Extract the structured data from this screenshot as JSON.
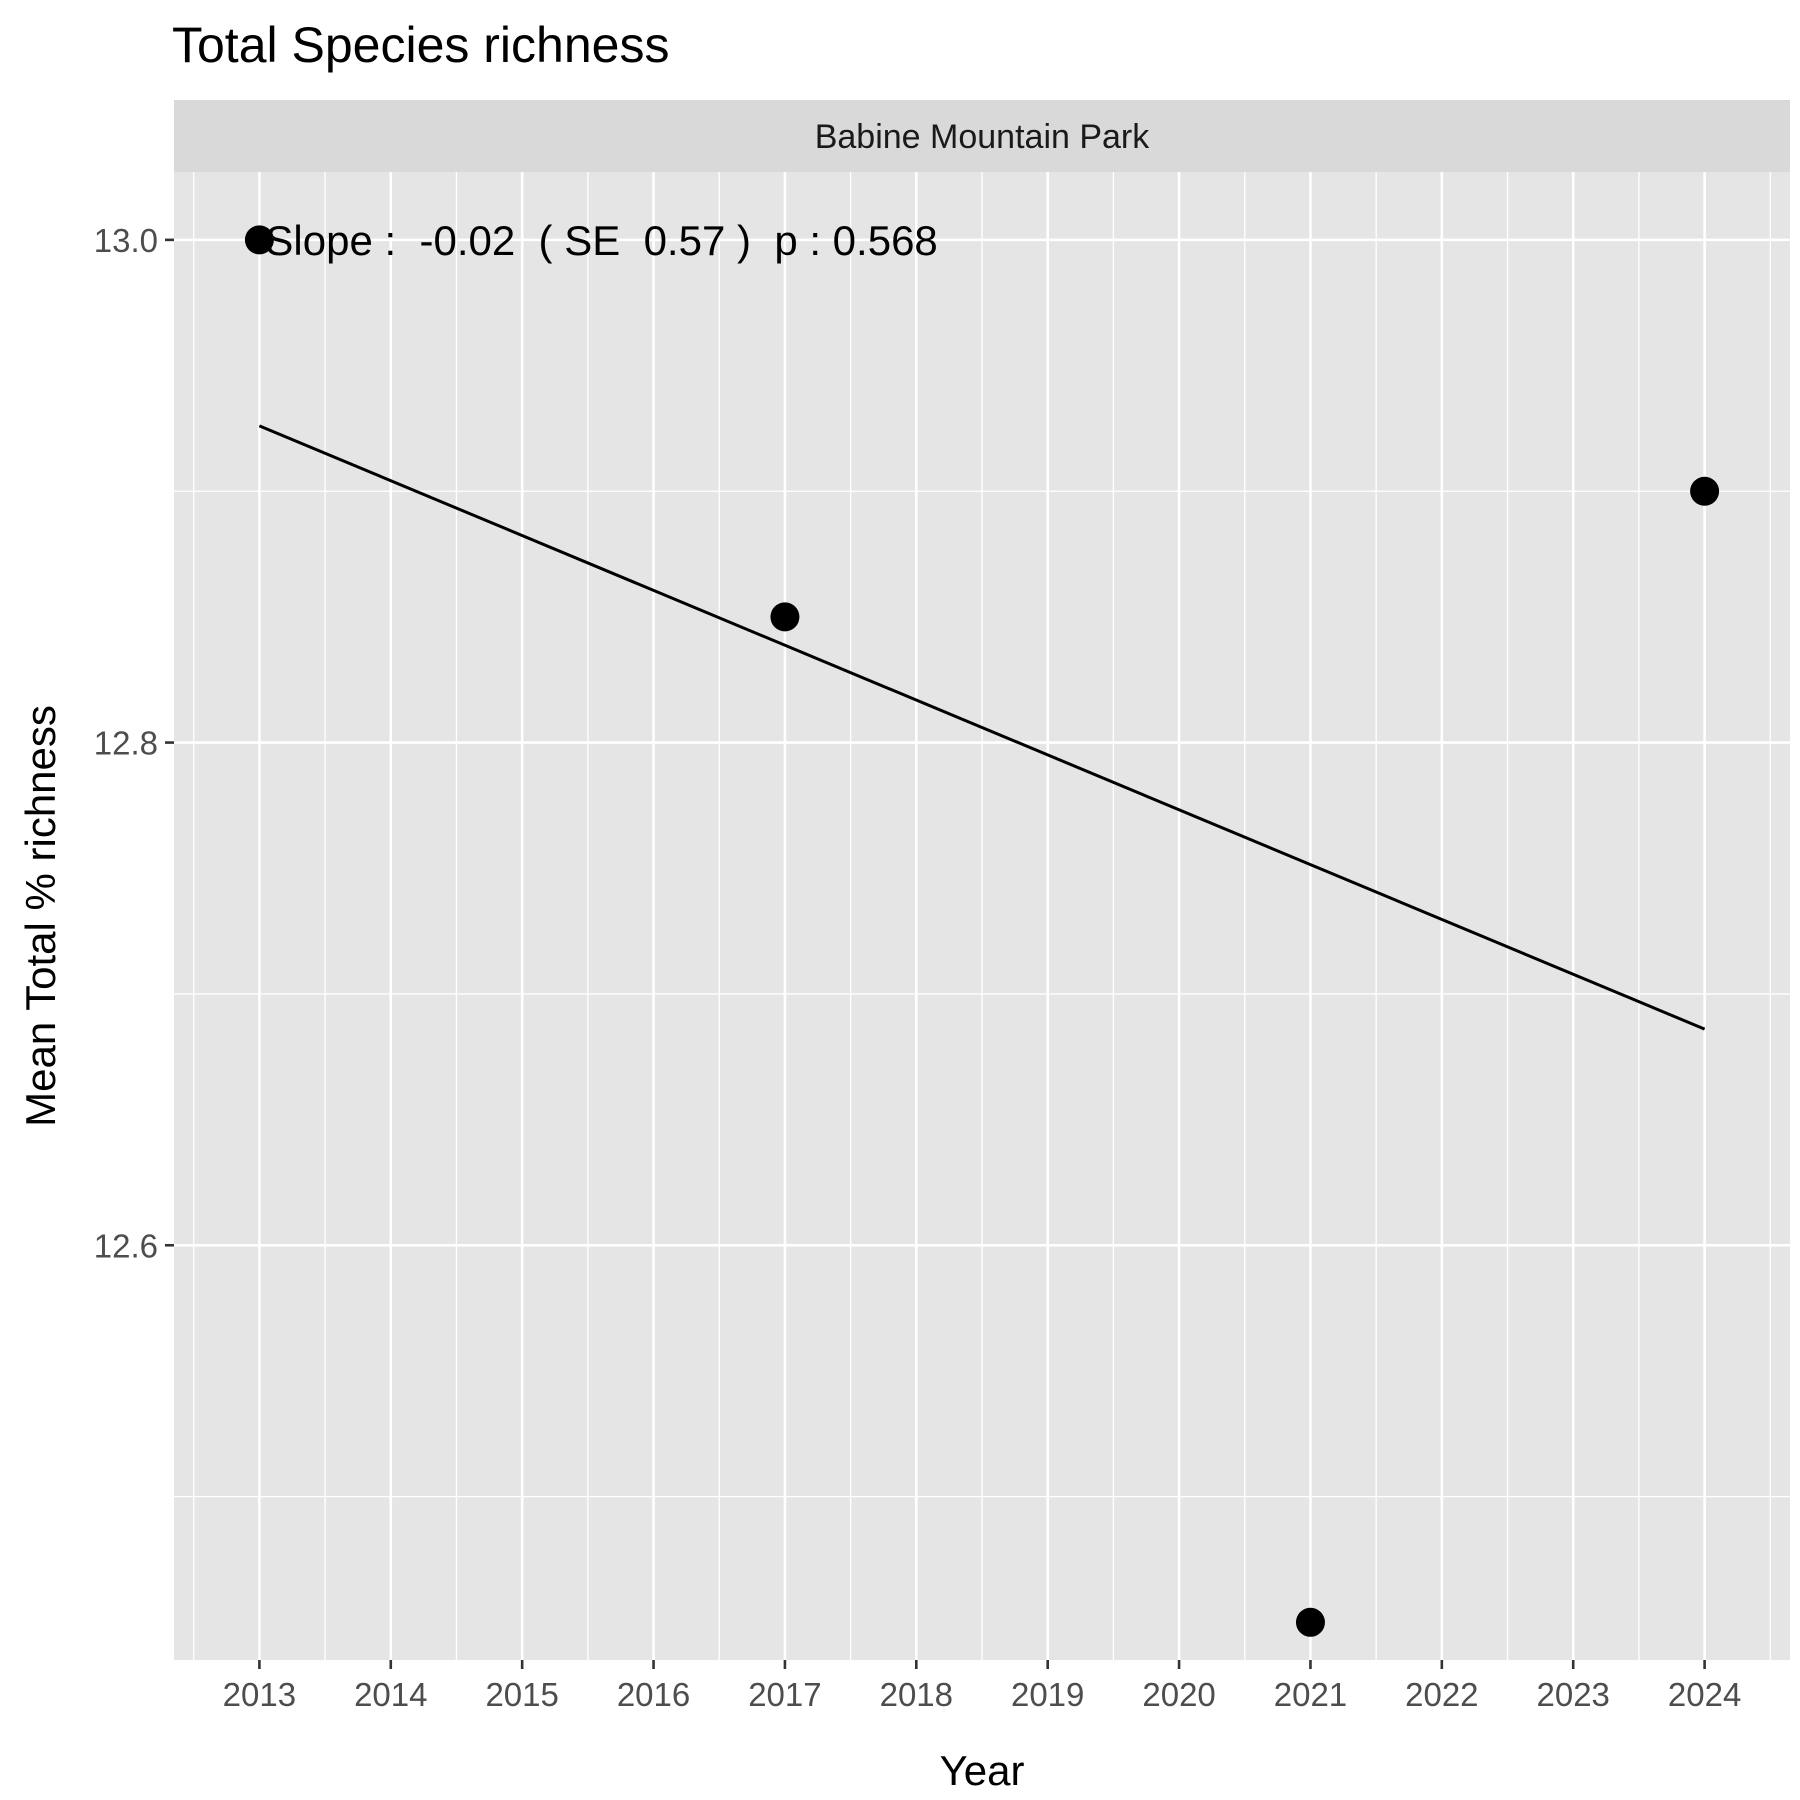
{
  "chart_data": {
    "type": "scatter",
    "title": "Total Species richness",
    "facet": "Babine Mountain Park",
    "xlabel": "Year",
    "ylabel": "Mean Total % richness",
    "x_ticks": [
      2013,
      2014,
      2015,
      2016,
      2017,
      2018,
      2019,
      2020,
      2021,
      2022,
      2023,
      2024
    ],
    "y_ticks": [
      12.6,
      12.8,
      13.0
    ],
    "y_tick_labels": [
      "12.6",
      "12.8",
      "13.0"
    ],
    "xlim": [
      2012.35,
      2024.65
    ],
    "ylim": [
      12.435,
      13.027
    ],
    "points": [
      {
        "x": 2013,
        "y": 13.0
      },
      {
        "x": 2017,
        "y": 12.85
      },
      {
        "x": 2021,
        "y": 12.45
      },
      {
        "x": 2024,
        "y": 12.9
      }
    ],
    "trend_line": {
      "x": [
        2013,
        2024
      ],
      "y": [
        12.926,
        12.686
      ]
    },
    "annotation": "Slope :  -0.02  ( SE  0.57 )  p : 0.568",
    "grid": true,
    "panel_color": "#e5e5e5",
    "strip_color": "#d9d9d9",
    "grid_color": "#ffffff",
    "point_color": "#000000",
    "line_color": "#000000"
  }
}
